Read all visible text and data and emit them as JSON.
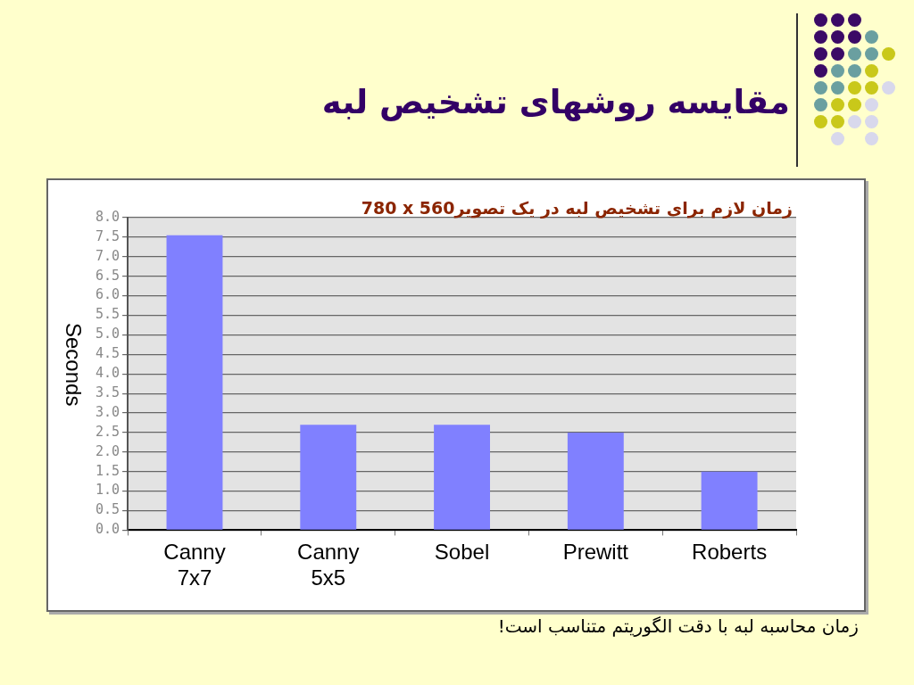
{
  "chart_data": {
    "type": "bar",
    "title": "مقایسه روشهای تشخیص لبه",
    "subtitle": "زمان لازم برای تشخیص لبه در یک تصویر780 x 560",
    "ylabel": "Seconds",
    "categories": [
      "Canny 7x7",
      "Canny 5x5",
      "Sobel",
      "Prewitt",
      "Roberts"
    ],
    "values": [
      7.55,
      2.7,
      2.7,
      2.5,
      1.5
    ],
    "color": "#8080ff",
    "ylim": [
      0,
      8
    ],
    "yticks": [
      {
        "value": 0,
        "label": "0.0"
      },
      0.5,
      {
        "value": 1,
        "label": "1.0"
      },
      1.5,
      {
        "value": 2,
        "label": "2.0"
      },
      2.5,
      {
        "value": 3,
        "label": "3.0"
      },
      3.5,
      {
        "value": 4,
        "label": "4.0"
      },
      4.5,
      {
        "value": 5,
        "label": "5.0"
      },
      5.5,
      {
        "value": 6,
        "label": "6.0"
      },
      6.5,
      {
        "value": 7,
        "label": "7.0"
      },
      7.5,
      {
        "value": 8,
        "label": "8.0"
      }
    ],
    "grid": "y",
    "annotations": [
      "زمان محاسبه لبه با دقت الگوریتم متناسب است!"
    ]
  }
}
